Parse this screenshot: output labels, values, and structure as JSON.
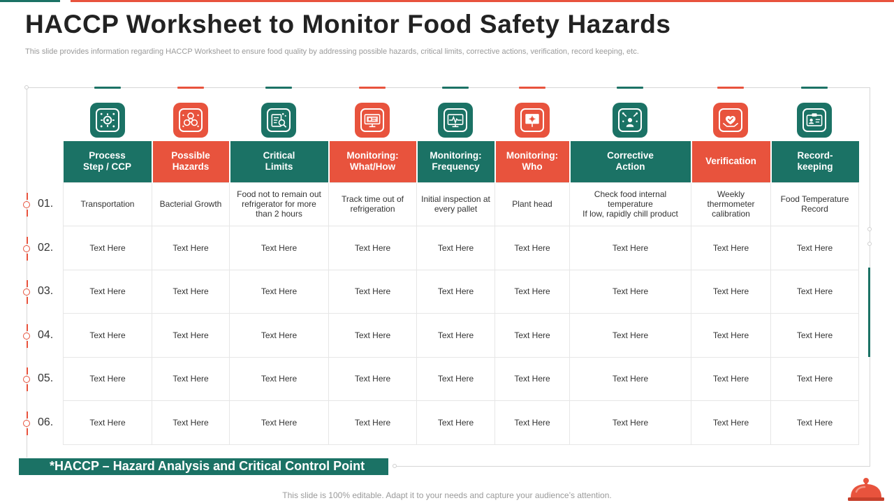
{
  "header": {
    "title": "HACCP Worksheet to Monitor Food Safety Hazards",
    "subtitle": "This slide provides information regarding HACCP Worksheet to ensure food quality by addressing possible hazards, critical limits, corrective actions, verification, record keeping, etc."
  },
  "colors": {
    "green": "#1b7265",
    "red": "#e8533d"
  },
  "columns": [
    {
      "label": "Process\nStep / CCP",
      "color": "green",
      "icon": "gear-network-icon"
    },
    {
      "label": "Possible\nHazards",
      "color": "red",
      "icon": "biohazard-icon"
    },
    {
      "label": "Critical\nLimits",
      "color": "green",
      "icon": "document-search-icon"
    },
    {
      "label": "Monitoring:\nWhat/How",
      "color": "red",
      "icon": "monitor-screen-icon"
    },
    {
      "label": "Monitoring:\nFrequency",
      "color": "green",
      "icon": "heartbeat-monitor-icon"
    },
    {
      "label": "Monitoring:\nWho",
      "color": "red",
      "icon": "presentation-icon"
    },
    {
      "label": "Corrective\nAction",
      "color": "green",
      "icon": "person-tools-icon"
    },
    {
      "label": "Verification",
      "color": "red",
      "icon": "hand-check-icon"
    },
    {
      "label": "Record-\nkeeping",
      "color": "green",
      "icon": "id-card-icon"
    }
  ],
  "rows": [
    {
      "num": "01.",
      "cells": [
        "Transportation",
        "Bacterial Growth",
        "Food not to remain out refrigerator for more than 2 hours",
        "Track time out of refrigeration",
        "Initial inspection at every  pallet",
        "Plant head",
        "Check food internal temperature\nIf low, rapidly chill product",
        "Weekly thermometer calibration",
        "Food Temperature Record"
      ]
    },
    {
      "num": "02.",
      "cells": [
        "Text Here",
        "Text Here",
        "Text Here",
        "Text Here",
        "Text Here",
        "Text Here",
        "Text Here",
        "Text Here",
        "Text Here"
      ]
    },
    {
      "num": "03.",
      "cells": [
        "Text Here",
        "Text Here",
        "Text Here",
        "Text Here",
        "Text Here",
        "Text Here",
        "Text Here",
        "Text Here",
        "Text Here"
      ]
    },
    {
      "num": "04.",
      "cells": [
        "Text Here",
        "Text Here",
        "Text Here",
        "Text Here",
        "Text Here",
        "Text Here",
        "Text Here",
        "Text Here",
        "Text Here"
      ]
    },
    {
      "num": "05.",
      "cells": [
        "Text Here",
        "Text Here",
        "Text Here",
        "Text Here",
        "Text Here",
        "Text Here",
        "Text Here",
        "Text Here",
        "Text Here"
      ]
    },
    {
      "num": "06.",
      "cells": [
        "Text Here",
        "Text Here",
        "Text Here",
        "Text Here",
        "Text Here",
        "Text Here",
        "Text Here",
        "Text Here",
        "Text Here"
      ]
    }
  ],
  "footnote": "*HACCP – Hazard Analysis and Critical Control Point",
  "bottom_note": "This slide is 100% editable. Adapt it to your needs and capture your audience’s attention."
}
